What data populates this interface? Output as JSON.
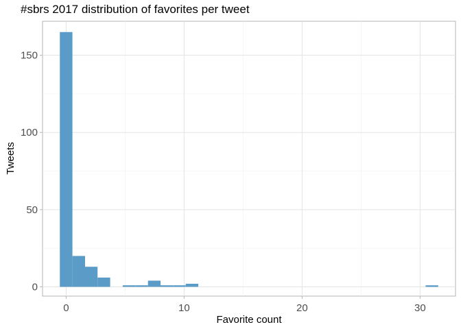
{
  "chart_data": {
    "type": "bar",
    "title": "#sbrs 2017 distribution of favorites per tweet",
    "xlabel": "Favorite count",
    "ylabel": "Tweets",
    "xlim": [
      -2,
      33
    ],
    "ylim": [
      -6,
      172
    ],
    "x_ticks": [
      0,
      10,
      20,
      30
    ],
    "y_ticks": [
      0,
      50,
      100,
      150
    ],
    "x_minor_ticks": [
      5,
      15,
      25
    ],
    "y_minor_ticks": [
      25,
      75,
      125
    ],
    "bin_width": 1.0667,
    "bins": [
      {
        "x": 0.0,
        "count": 165
      },
      {
        "x": 1.07,
        "count": 20
      },
      {
        "x": 2.13,
        "count": 13
      },
      {
        "x": 3.2,
        "count": 6
      },
      {
        "x": 5.33,
        "count": 1
      },
      {
        "x": 6.4,
        "count": 1
      },
      {
        "x": 7.47,
        "count": 4
      },
      {
        "x": 8.53,
        "count": 1
      },
      {
        "x": 9.6,
        "count": 1
      },
      {
        "x": 10.67,
        "count": 2
      },
      {
        "x": 31.0,
        "count": 1
      }
    ],
    "bar_color": "#5b9bc8",
    "grid": true,
    "legend": "none"
  }
}
